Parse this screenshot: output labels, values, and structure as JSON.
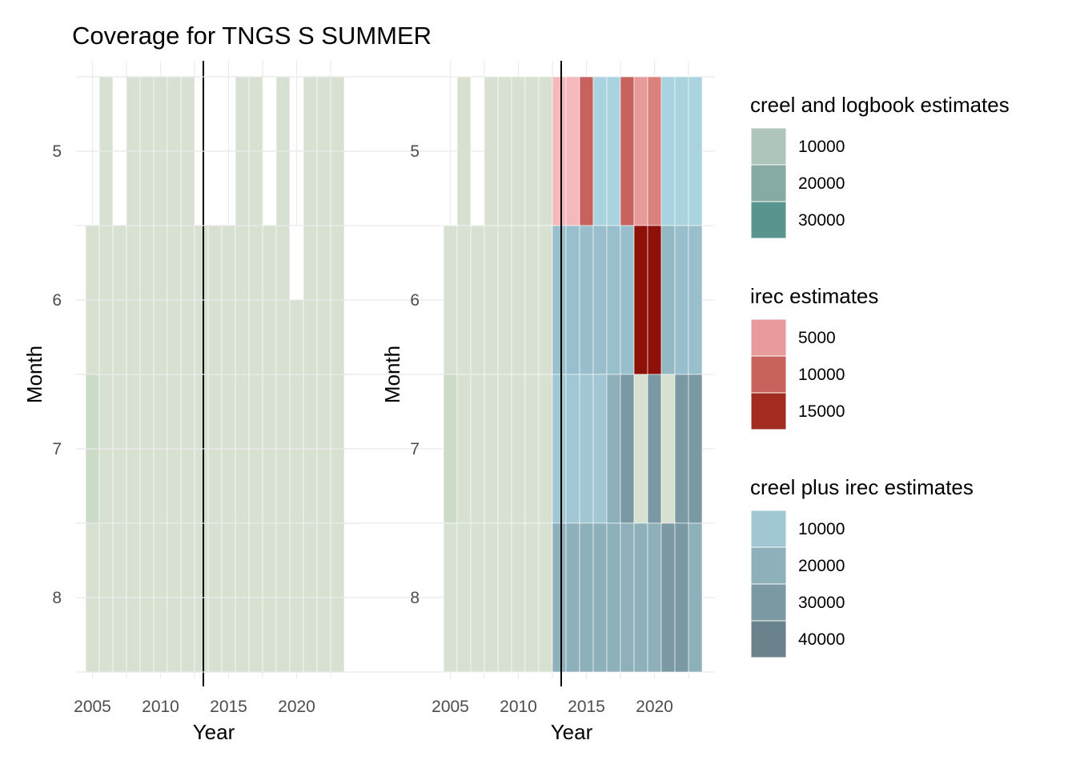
{
  "title": "Coverage for TNGS S SUMMER",
  "colors": {
    "neutral": "#d7e0d1",
    "neutral_dark": "#ccdac8",
    "grid": "#ebebeb",
    "refline": "#000000"
  },
  "legends": [
    {
      "title": "creel and logbook estimates",
      "items": [
        {
          "label": "10000",
          "color": "#adc5bb"
        },
        {
          "label": "20000",
          "color": "#86aba3"
        },
        {
          "label": "30000",
          "color": "#5a948e"
        }
      ]
    },
    {
      "title": "irec estimates",
      "items": [
        {
          "label": "5000",
          "color": "#e89a9b"
        },
        {
          "label": "10000",
          "color": "#c8625c"
        },
        {
          "label": "15000",
          "color": "#a32c21"
        }
      ]
    },
    {
      "title": "creel plus irec estimates",
      "items": [
        {
          "label": "10000",
          "color": "#a1c7d5"
        },
        {
          "label": "20000",
          "color": "#8eb0ba"
        },
        {
          "label": "30000",
          "color": "#7b99a2"
        },
        {
          "label": "40000",
          "color": "#6a828b"
        }
      ]
    }
  ],
  "chart_data": [
    {
      "type": "heatmap",
      "panel": "left",
      "xlabel": "Year",
      "ylabel": "Month",
      "x_ticks": [
        "2005",
        "2010",
        "2015",
        "2020"
      ],
      "y_ticks": [
        "5",
        "6",
        "7",
        "8"
      ],
      "xlim": [
        2004.5,
        2024.0
      ],
      "ylim": [
        4.5,
        8.5
      ],
      "reference_line_x": 2013,
      "months": [
        5,
        6,
        7,
        8
      ],
      "cells": [
        {
          "month": 5,
          "years": [
            2006,
            2008,
            2009,
            2010,
            2011,
            2012,
            2016,
            2017,
            2019,
            2021,
            2022,
            2023
          ],
          "color": "#d7e0d1"
        },
        {
          "month": 6,
          "years": [
            2005,
            2006,
            2007,
            2008,
            2009,
            2010,
            2011,
            2012,
            2013,
            2014,
            2015,
            2016,
            2017,
            2018,
            2019,
            2020,
            2021,
            2022,
            2023
          ],
          "color": "#d7e0d1"
        },
        {
          "month": 7,
          "years": [
            2005
          ],
          "color": "#ccdac8"
        },
        {
          "month": 7,
          "years": [
            2006,
            2007,
            2008,
            2009,
            2010,
            2011,
            2012,
            2013,
            2014,
            2015,
            2016,
            2017,
            2018,
            2019,
            2020,
            2021,
            2022,
            2023
          ],
          "color": "#d7e0d1"
        },
        {
          "month": 8,
          "years": [
            2005,
            2006,
            2007,
            2008,
            2009,
            2010,
            2011,
            2012,
            2013,
            2014,
            2015,
            2016,
            2017,
            2018,
            2019,
            2020,
            2021,
            2022,
            2023
          ],
          "color": "#d7e0d1"
        }
      ],
      "extra_half_month": {
        "month": 6.75,
        "years": [
          2020
        ],
        "note_color": "#d7e0d1"
      }
    },
    {
      "type": "heatmap",
      "panel": "right",
      "xlabel": "Year",
      "ylabel": "Month",
      "x_ticks": [
        "2005",
        "2010",
        "2015",
        "2020"
      ],
      "y_ticks": [
        "5",
        "6",
        "7",
        "8"
      ],
      "xlim": [
        2004.5,
        2024.0
      ],
      "ylim": [
        4.5,
        8.5
      ],
      "reference_line_x": 2013,
      "rows": {
        "5": {
          "2006": "#d7e0d1",
          "2008": "#d7e0d1",
          "2009": "#d7e0d1",
          "2010": "#d7e0d1",
          "2011": "#d7e0d1",
          "2012": "#d7e0d1",
          "2013": "#f4b8bd",
          "2014": "#f4b8bd",
          "2015": "#c8625c",
          "2016": "#a9d3df",
          "2017": "#a9d3df",
          "2018": "#c8625c",
          "2019": "#e89a9b",
          "2020": "#db827e",
          "2021": "#a9d3df",
          "2022": "#a9d3df",
          "2023": "#a9d3df"
        },
        "6": {
          "2005": "#d7e0d1",
          "2006": "#d7e0d1",
          "2007": "#d7e0d1",
          "2008": "#d7e0d1",
          "2009": "#d7e0d1",
          "2010": "#d7e0d1",
          "2011": "#d7e0d1",
          "2012": "#d7e0d1",
          "2013": "#99bfcc",
          "2014": "#99bfcc",
          "2015": "#99bfcc",
          "2016": "#99bfcc",
          "2017": "#99bfcc",
          "2018": "#99bfcc",
          "2019": "#8e1008",
          "2020": "#8e1008",
          "2021": "#94b9c3",
          "2022": "#99bfcc",
          "2023": "#99bfcc"
        },
        "7": {
          "2005": "#ccdac8",
          "2006": "#d7e0d1",
          "2007": "#d7e0d1",
          "2008": "#d7e0d1",
          "2009": "#d7e0d1",
          "2010": "#d7e0d1",
          "2011": "#d7e0d1",
          "2012": "#d7e0d1",
          "2013": "#a1c7d5",
          "2014": "#a1c7d5",
          "2015": "#a1c7d5",
          "2016": "#a1c7d5",
          "2017": "#8eb0ba",
          "2018": "#7b99a2",
          "2019": "#d7e0d1",
          "2020": "#7b99a2",
          "2021": "#d7e0d1",
          "2022": "#7b99a2",
          "2023": "#7b99a2"
        },
        "8": {
          "2005": "#d7e0d1",
          "2006": "#d7e0d1",
          "2007": "#d7e0d1",
          "2008": "#d7e0d1",
          "2009": "#d7e0d1",
          "2010": "#d7e0d1",
          "2011": "#d7e0d1",
          "2012": "#d7e0d1",
          "2013": "#8eb0ba",
          "2014": "#8eb0ba",
          "2015": "#8eb0ba",
          "2016": "#8eb0ba",
          "2017": "#8eb0ba",
          "2018": "#8eb0ba",
          "2019": "#8eb0ba",
          "2020": "#8eb0ba",
          "2021": "#7b99a2",
          "2022": "#7b99a2",
          "2023": "#8eb0ba"
        }
      }
    }
  ]
}
